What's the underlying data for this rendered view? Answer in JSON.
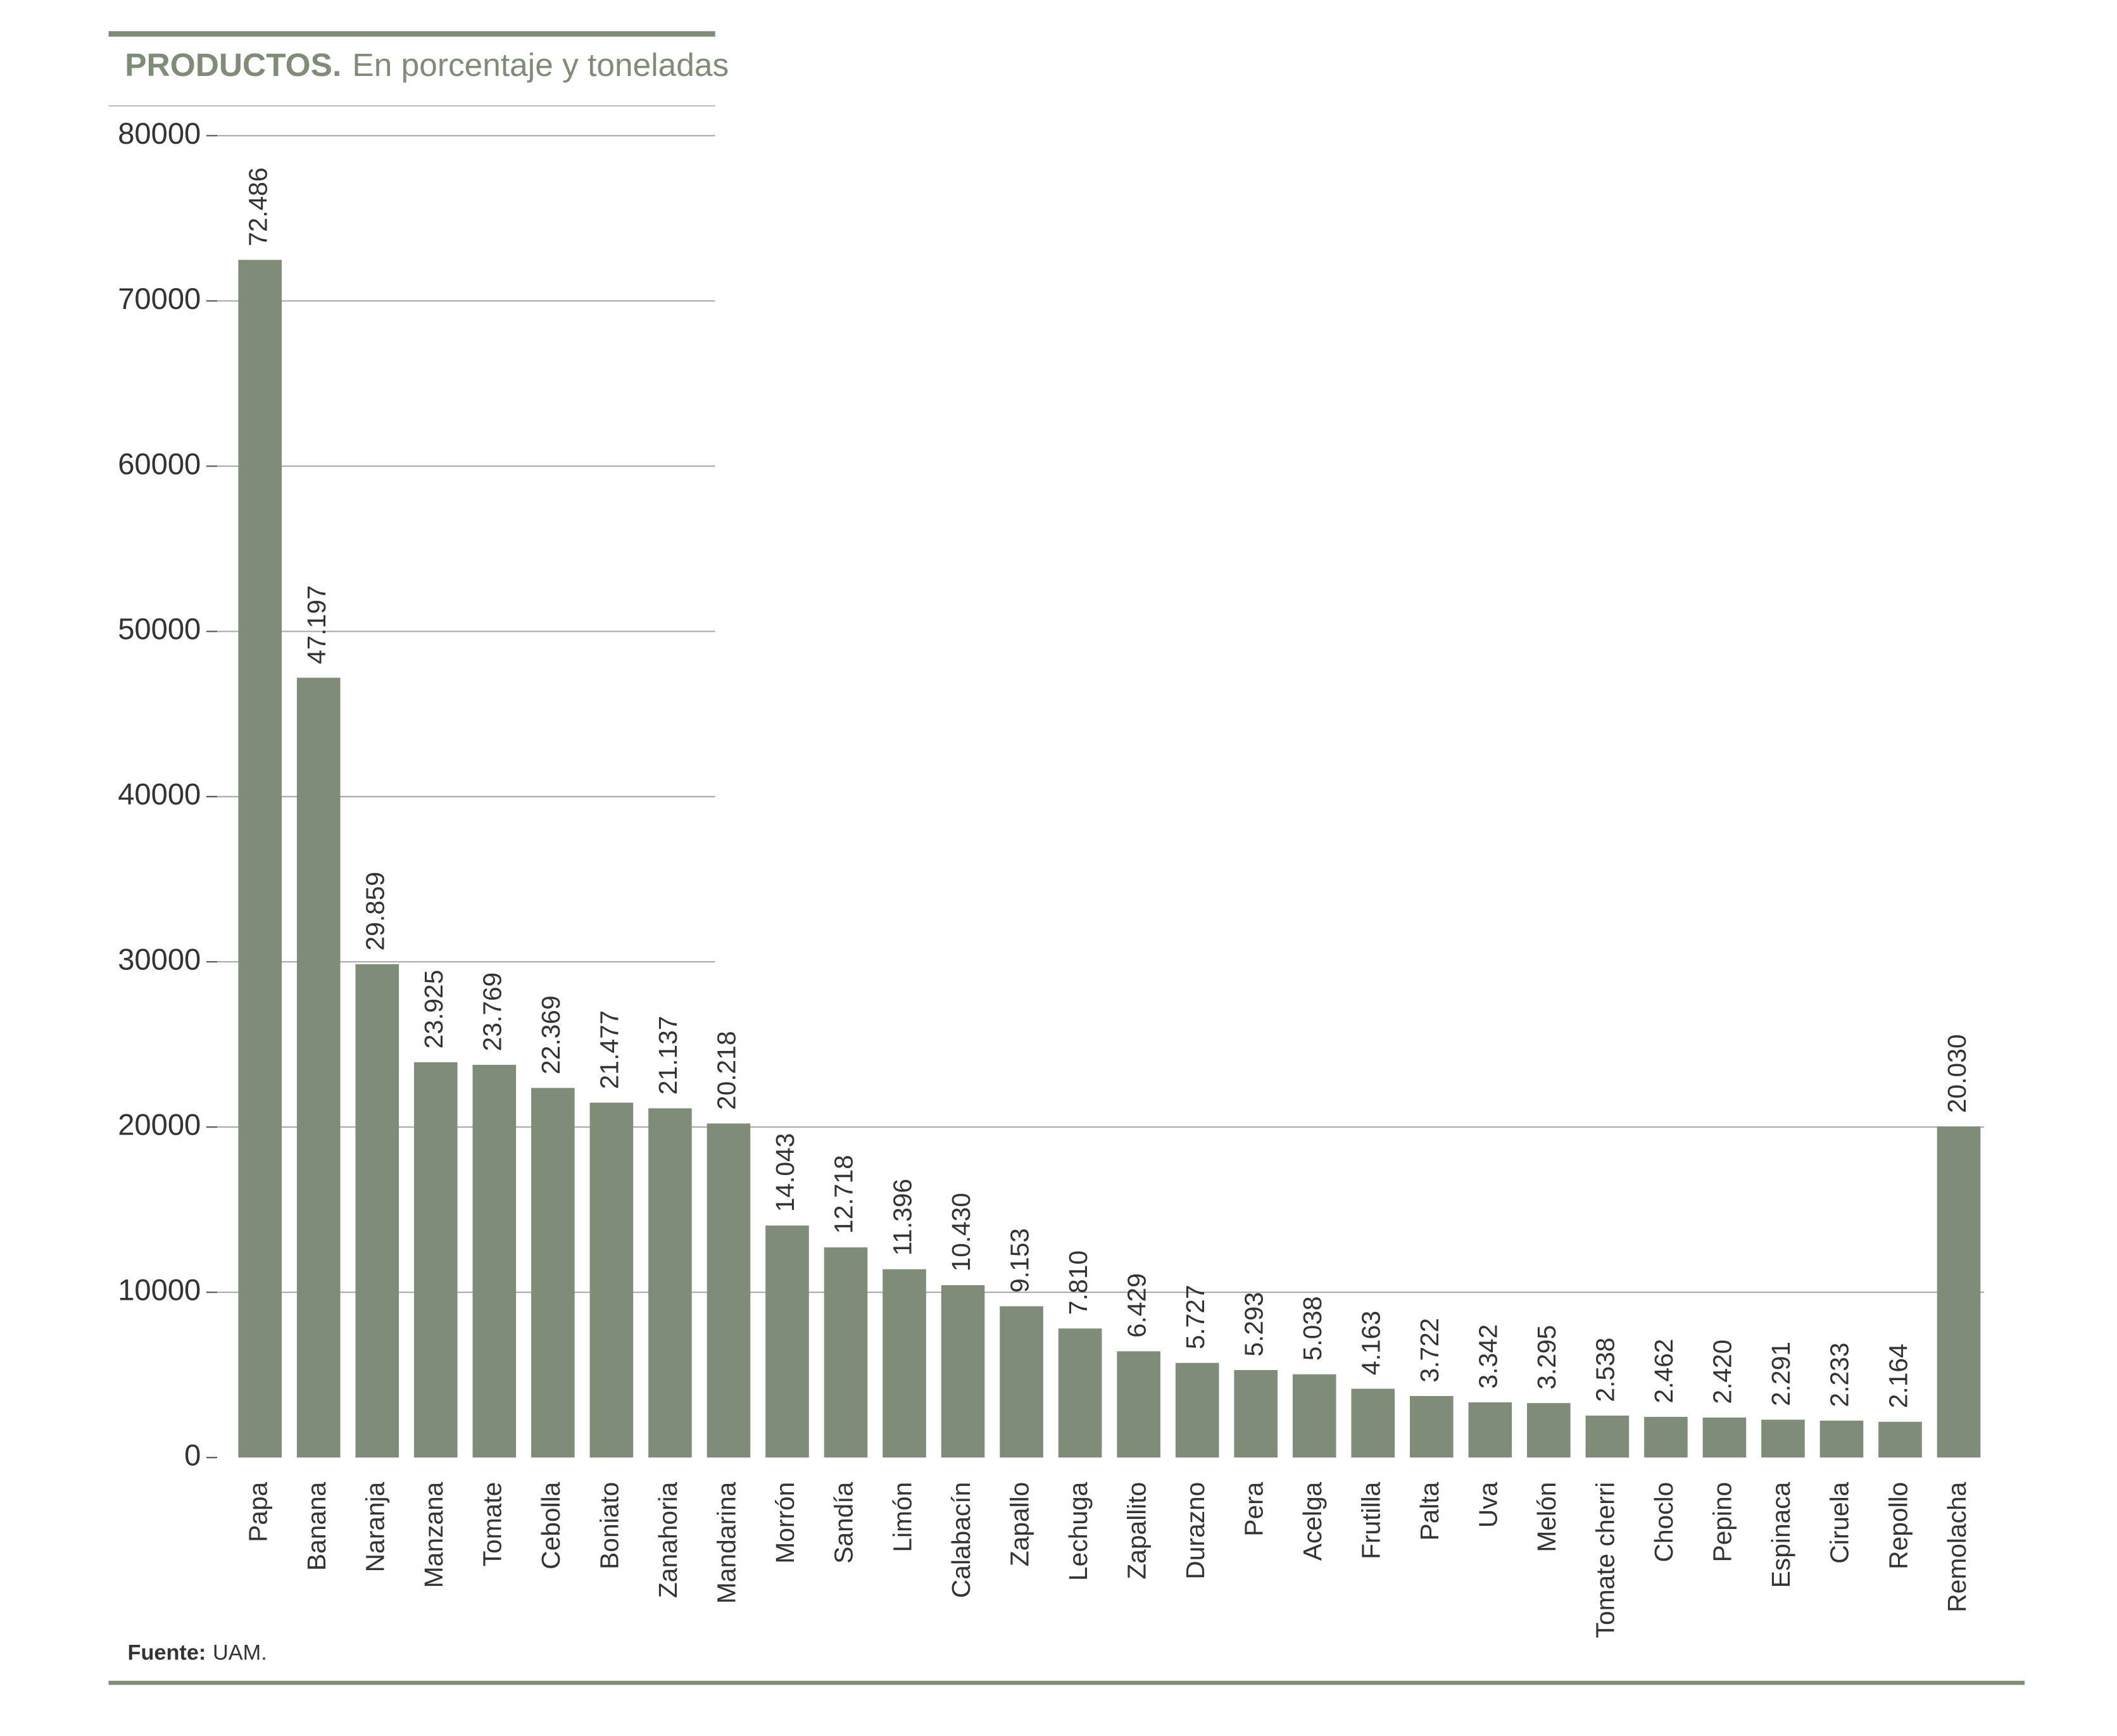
{
  "chart_data": {
    "type": "bar",
    "title": "PRODUCTOS.",
    "subtitle": "En porcentaje y toneladas",
    "source_label": "Fuente:",
    "source": "UAM.",
    "color": "#7f8c77",
    "categories": [
      "Papa",
      "Banana",
      "Naranja",
      "Manzana",
      "Tomate",
      "Cebolla",
      "Boniato",
      "Zanahoria",
      "Mandarina",
      "Morrón",
      "Sandía",
      "Limón",
      "Calabacín",
      "Zapallo",
      "Lechuga",
      "Zapallito",
      "Durazno",
      "Pera",
      "Acelga",
      "Frutilla",
      "Palta",
      "Uva",
      "Melón",
      "Tomate cherri",
      "Choclo",
      "Pepino",
      "Espinaca",
      "Ciruela",
      "Repollo",
      "Remolacha"
    ],
    "values": [
      72486,
      47197,
      29859,
      23925,
      23769,
      22369,
      21477,
      21137,
      20218,
      14043,
      12718,
      11396,
      10430,
      9153,
      7810,
      6429,
      5727,
      5293,
      5038,
      4163,
      3722,
      3342,
      3295,
      2538,
      2462,
      2420,
      2291,
      2233,
      2164,
      20030
    ],
    "value_labels": [
      "72.486",
      "47.197",
      "29.859",
      "23.925",
      "23.769",
      "22.369",
      "21.477",
      "21.137",
      "20.218",
      "14.043",
      "12.718",
      "11.396",
      "10.430",
      "9.153",
      "7.810",
      "6.429",
      "5.727",
      "5.293",
      "5.038",
      "4.163",
      "3.722",
      "3.342",
      "3.295",
      "2.538",
      "2.462",
      "2.420",
      "2.291",
      "2.233",
      "2.164",
      "20.030"
    ],
    "ylim": [
      0,
      80000
    ],
    "yticks": [
      0,
      10000,
      20000,
      30000,
      40000,
      50000,
      60000,
      70000,
      80000
    ],
    "grid": true
  }
}
